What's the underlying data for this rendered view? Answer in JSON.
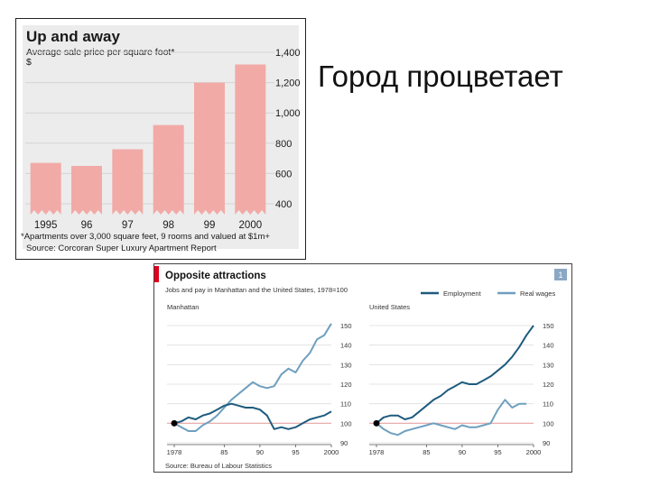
{
  "heading": "Город процветает",
  "chart_data": [
    {
      "type": "bar",
      "title": "Up and away",
      "subtitle": "Average sale price per square foot*",
      "ylabel": "$",
      "categories": [
        "1995",
        "96",
        "97",
        "98",
        "99",
        "2000"
      ],
      "values": [
        670,
        650,
        760,
        920,
        1200,
        1320
      ],
      "ylim": [
        400,
        1400
      ],
      "yticks": [
        "400",
        "600",
        "800",
        "1,000",
        "1,200",
        "1,400"
      ],
      "ytick_values": [
        400,
        600,
        800,
        1000,
        1200,
        1400
      ],
      "grid": true,
      "footnote": "*Apartments over 3,000 square feet, 9 rooms and valued at $1m+",
      "source": "Source: Corcoran Super Luxury Apartment Report",
      "colors": {
        "bar": "#f2aaa6",
        "grid": "#d4d4d4",
        "background": "#ececec",
        "text": "#1a1a1a"
      }
    },
    {
      "type": "line",
      "title": "Opposite attractions",
      "subtitle": "Jobs and pay in Manhattan and the United States, 1978=100",
      "badge": "1",
      "legend": [
        "Employment",
        "Real wages"
      ],
      "legend_position": "top-right",
      "source": "Source: Bureau of Labour Statistics",
      "colors": {
        "employment": "#1e5b7e",
        "real_wages": "#6f9fbf",
        "accent": "#e0001b",
        "baseline": "#e6a5a5",
        "grid": "#dddddd",
        "badge": "#8aa8c4"
      },
      "panels": [
        {
          "name": "Manhattan",
          "xlim": [
            1978,
            2000
          ],
          "ylim": [
            90,
            150
          ],
          "xticks": [
            "1978",
            "85",
            "90",
            "95",
            "2000"
          ],
          "xtick_values": [
            1978,
            1985,
            1990,
            1995,
            2000
          ],
          "yticks": [
            "90",
            "100",
            "110",
            "120",
            "130",
            "140",
            "150"
          ],
          "ytick_values": [
            90,
            100,
            110,
            120,
            130,
            140,
            150
          ],
          "series": [
            {
              "name": "Employment",
              "x": [
                1978,
                1979,
                1980,
                1981,
                1982,
                1983,
                1984,
                1985,
                1986,
                1987,
                1988,
                1989,
                1990,
                1991,
                1992,
                1993,
                1994,
                1995,
                1996,
                1997,
                1998,
                1999,
                2000
              ],
              "y": [
                100,
                101,
                103,
                102,
                104,
                105,
                107,
                109,
                110,
                109,
                108,
                108,
                107,
                104,
                97,
                98,
                97,
                98,
                100,
                102,
                103,
                104,
                106
              ]
            },
            {
              "name": "Real wages",
              "x": [
                1978,
                1979,
                1980,
                1981,
                1982,
                1983,
                1984,
                1985,
                1986,
                1987,
                1988,
                1989,
                1990,
                1991,
                1992,
                1993,
                1994,
                1995,
                1996,
                1997,
                1998,
                1999,
                2000
              ],
              "y": [
                100,
                98,
                96,
                96,
                99,
                101,
                104,
                108,
                112,
                115,
                118,
                121,
                119,
                118,
                119,
                125,
                128,
                126,
                132,
                136,
                143,
                145,
                151
              ]
            }
          ]
        },
        {
          "name": "United States",
          "xlim": [
            1978,
            2000
          ],
          "ylim": [
            90,
            150
          ],
          "xticks": [
            "1978",
            "85",
            "90",
            "95",
            "2000"
          ],
          "xtick_values": [
            1978,
            1985,
            1990,
            1995,
            2000
          ],
          "yticks": [
            "90",
            "100",
            "110",
            "120",
            "130",
            "140",
            "150"
          ],
          "ytick_values": [
            90,
            100,
            110,
            120,
            130,
            140,
            150
          ],
          "series": [
            {
              "name": "Employment",
              "x": [
                1978,
                1979,
                1980,
                1981,
                1982,
                1983,
                1984,
                1985,
                1986,
                1987,
                1988,
                1989,
                1990,
                1991,
                1992,
                1993,
                1994,
                1995,
                1996,
                1997,
                1998,
                1999,
                2000
              ],
              "y": [
                100,
                103,
                104,
                104,
                102,
                103,
                106,
                109,
                112,
                114,
                117,
                119,
                121,
                120,
                120,
                122,
                124,
                127,
                130,
                134,
                139,
                145,
                150
              ]
            },
            {
              "name": "Real wages",
              "x": [
                1978,
                1979,
                1980,
                1981,
                1982,
                1983,
                1984,
                1985,
                1986,
                1987,
                1988,
                1989,
                1990,
                1991,
                1992,
                1993,
                1994,
                1995,
                1996,
                1997,
                1998,
                1999
              ],
              "y": [
                100,
                97,
                95,
                94,
                96,
                97,
                98,
                99,
                100,
                99,
                98,
                97,
                99,
                98,
                98,
                99,
                100,
                107,
                112,
                108,
                110,
                110
              ]
            }
          ]
        }
      ]
    }
  ]
}
